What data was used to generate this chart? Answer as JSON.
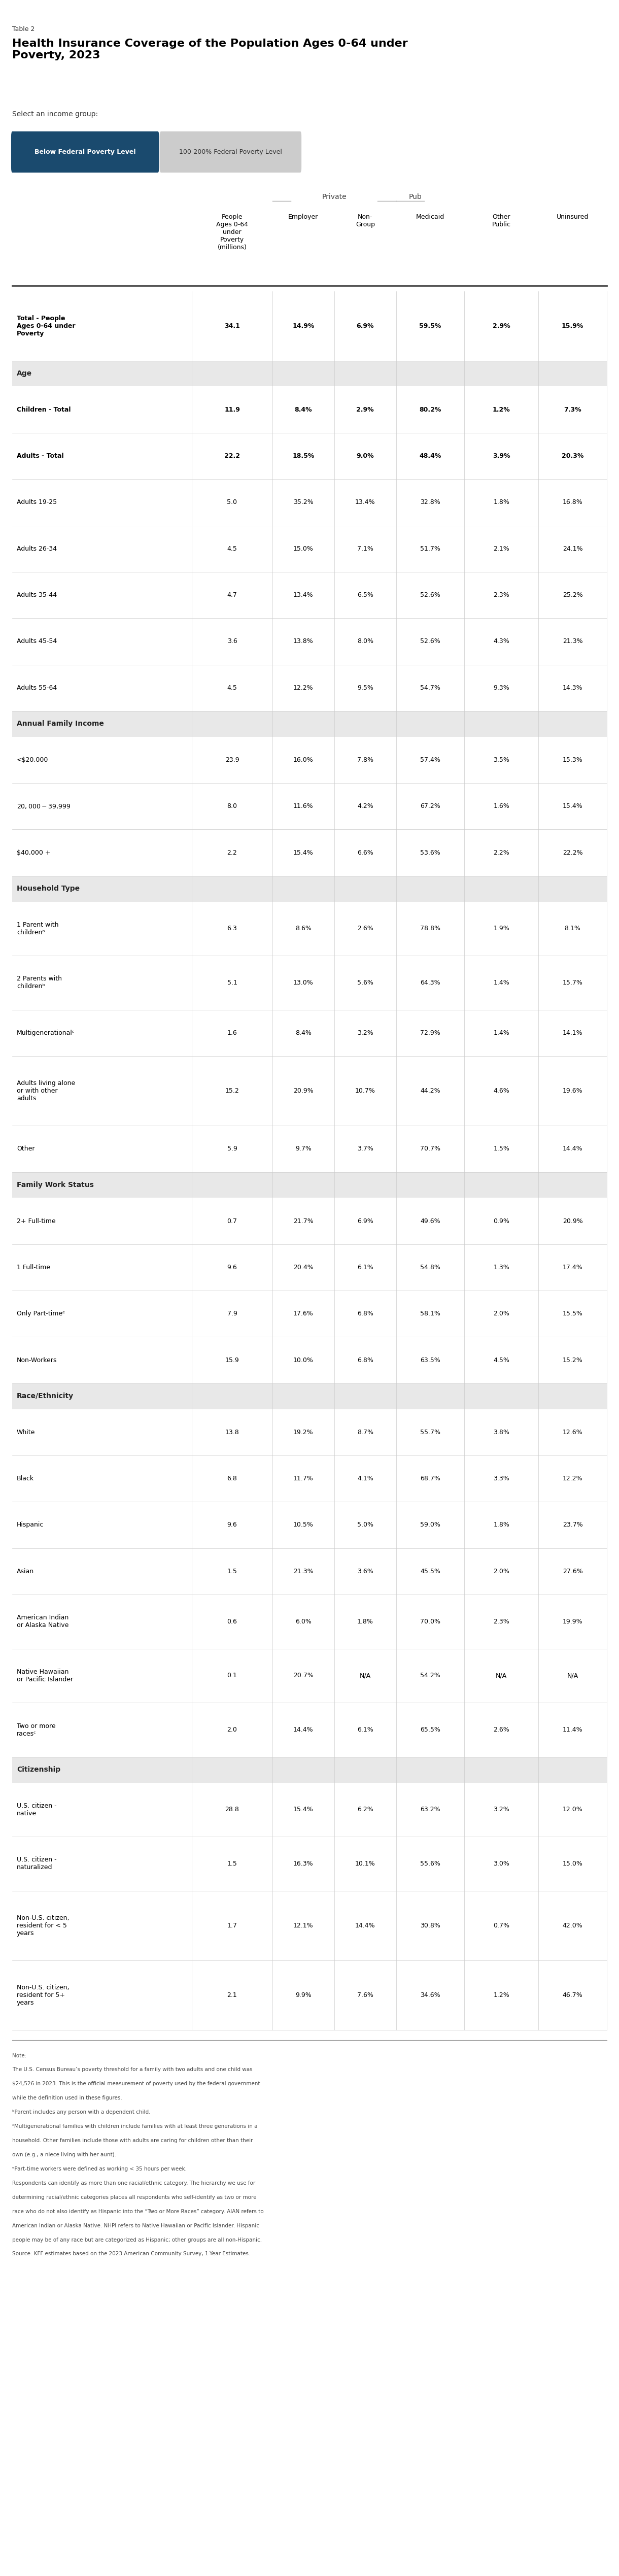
{
  "table_number": "Table 2",
  "title": "Health Insurance Coverage of the Population Ages 0-64 under\nPoverty, 2023",
  "income_buttons": [
    "Below Federal Poverty Level",
    "100-200% Federal Poverty Level"
  ],
  "active_button": 0,
  "section_header": "Select an income group:",
  "col_group_private": "Private",
  "col_group_public": "Pub",
  "rows": [
    {
      "label": "Total - People\nAges 0-64 under\nPoverty",
      "is_section": false,
      "bold": true,
      "values": [
        "34.1",
        "14.9%",
        "6.9%",
        "59.5%",
        "2.9%",
        "15.9%"
      ]
    },
    {
      "label": "Age",
      "is_section": true,
      "bold": true,
      "values": []
    },
    {
      "label": "Children - Total",
      "is_section": false,
      "bold": true,
      "values": [
        "11.9",
        "8.4%",
        "2.9%",
        "80.2%",
        "1.2%",
        "7.3%"
      ]
    },
    {
      "label": "Adults - Total",
      "is_section": false,
      "bold": true,
      "values": [
        "22.2",
        "18.5%",
        "9.0%",
        "48.4%",
        "3.9%",
        "20.3%"
      ]
    },
    {
      "label": "Adults 19-25",
      "is_section": false,
      "bold": false,
      "values": [
        "5.0",
        "35.2%",
        "13.4%",
        "32.8%",
        "1.8%",
        "16.8%"
      ]
    },
    {
      "label": "Adults 26-34",
      "is_section": false,
      "bold": false,
      "values": [
        "4.5",
        "15.0%",
        "7.1%",
        "51.7%",
        "2.1%",
        "24.1%"
      ]
    },
    {
      "label": "Adults 35-44",
      "is_section": false,
      "bold": false,
      "values": [
        "4.7",
        "13.4%",
        "6.5%",
        "52.6%",
        "2.3%",
        "25.2%"
      ]
    },
    {
      "label": "Adults 45-54",
      "is_section": false,
      "bold": false,
      "values": [
        "3.6",
        "13.8%",
        "8.0%",
        "52.6%",
        "4.3%",
        "21.3%"
      ]
    },
    {
      "label": "Adults 55-64",
      "is_section": false,
      "bold": false,
      "values": [
        "4.5",
        "12.2%",
        "9.5%",
        "54.7%",
        "9.3%",
        "14.3%"
      ]
    },
    {
      "label": "Annual Family Income",
      "is_section": true,
      "bold": true,
      "values": []
    },
    {
      "label": "<$20,000",
      "is_section": false,
      "bold": false,
      "values": [
        "23.9",
        "16.0%",
        "7.8%",
        "57.4%",
        "3.5%",
        "15.3%"
      ]
    },
    {
      "label": "$20,000 - $39,999",
      "is_section": false,
      "bold": false,
      "values": [
        "8.0",
        "11.6%",
        "4.2%",
        "67.2%",
        "1.6%",
        "15.4%"
      ]
    },
    {
      "label": "$40,000 +",
      "is_section": false,
      "bold": false,
      "values": [
        "2.2",
        "15.4%",
        "6.6%",
        "53.6%",
        "2.2%",
        "22.2%"
      ]
    },
    {
      "label": "Household Type",
      "is_section": true,
      "bold": true,
      "values": []
    },
    {
      "label": "1 Parent with\nchildrenᵇ",
      "is_section": false,
      "bold": false,
      "values": [
        "6.3",
        "8.6%",
        "2.6%",
        "78.8%",
        "1.9%",
        "8.1%"
      ]
    },
    {
      "label": "2 Parents with\nchildrenᵇ",
      "is_section": false,
      "bold": false,
      "values": [
        "5.1",
        "13.0%",
        "5.6%",
        "64.3%",
        "1.4%",
        "15.7%"
      ]
    },
    {
      "label": "Multigenerationalᶜ",
      "is_section": false,
      "bold": false,
      "values": [
        "1.6",
        "8.4%",
        "3.2%",
        "72.9%",
        "1.4%",
        "14.1%"
      ]
    },
    {
      "label": "Adults living alone\nor with other\nadults",
      "is_section": false,
      "bold": false,
      "values": [
        "15.2",
        "20.9%",
        "10.7%",
        "44.2%",
        "4.6%",
        "19.6%"
      ]
    },
    {
      "label": "Other",
      "is_section": false,
      "bold": false,
      "values": [
        "5.9",
        "9.7%",
        "3.7%",
        "70.7%",
        "1.5%",
        "14.4%"
      ]
    },
    {
      "label": "Family Work Status",
      "is_section": true,
      "bold": true,
      "values": []
    },
    {
      "label": "2+ Full-time",
      "is_section": false,
      "bold": false,
      "values": [
        "0.7",
        "21.7%",
        "6.9%",
        "49.6%",
        "0.9%",
        "20.9%"
      ]
    },
    {
      "label": "1 Full-time",
      "is_section": false,
      "bold": false,
      "values": [
        "9.6",
        "20.4%",
        "6.1%",
        "54.8%",
        "1.3%",
        "17.4%"
      ]
    },
    {
      "label": "Only Part-timeᵉ",
      "is_section": false,
      "bold": false,
      "values": [
        "7.9",
        "17.6%",
        "6.8%",
        "58.1%",
        "2.0%",
        "15.5%"
      ]
    },
    {
      "label": "Non-Workers",
      "is_section": false,
      "bold": false,
      "values": [
        "15.9",
        "10.0%",
        "6.8%",
        "63.5%",
        "4.5%",
        "15.2%"
      ]
    },
    {
      "label": "Race/Ethnicity",
      "is_section": true,
      "bold": true,
      "values": []
    },
    {
      "label": "White",
      "is_section": false,
      "bold": false,
      "values": [
        "13.8",
        "19.2%",
        "8.7%",
        "55.7%",
        "3.8%",
        "12.6%"
      ]
    },
    {
      "label": "Black",
      "is_section": false,
      "bold": false,
      "values": [
        "6.8",
        "11.7%",
        "4.1%",
        "68.7%",
        "3.3%",
        "12.2%"
      ]
    },
    {
      "label": "Hispanic",
      "is_section": false,
      "bold": false,
      "values": [
        "9.6",
        "10.5%",
        "5.0%",
        "59.0%",
        "1.8%",
        "23.7%"
      ]
    },
    {
      "label": "Asian",
      "is_section": false,
      "bold": false,
      "values": [
        "1.5",
        "21.3%",
        "3.6%",
        "45.5%",
        "2.0%",
        "27.6%"
      ]
    },
    {
      "label": "American Indian\nor Alaska Native",
      "is_section": false,
      "bold": false,
      "values": [
        "0.6",
        "6.0%",
        "1.8%",
        "70.0%",
        "2.3%",
        "19.9%"
      ]
    },
    {
      "label": "Native Hawaiian\nor Pacific Islander",
      "is_section": false,
      "bold": false,
      "values": [
        "0.1",
        "20.7%",
        "N/A",
        "54.2%",
        "N/A",
        "N/A"
      ]
    },
    {
      "label": "Two or more\nracesᶜ",
      "is_section": false,
      "bold": false,
      "values": [
        "2.0",
        "14.4%",
        "6.1%",
        "65.5%",
        "2.6%",
        "11.4%"
      ]
    },
    {
      "label": "Citizenship",
      "is_section": true,
      "bold": true,
      "values": []
    },
    {
      "label": "U.S. citizen -\nnative",
      "is_section": false,
      "bold": false,
      "values": [
        "28.8",
        "15.4%",
        "6.2%",
        "63.2%",
        "3.2%",
        "12.0%"
      ]
    },
    {
      "label": "U.S. citizen -\nnaturalized",
      "is_section": false,
      "bold": false,
      "values": [
        "1.5",
        "16.3%",
        "10.1%",
        "55.6%",
        "3.0%",
        "15.0%"
      ]
    },
    {
      "label": "Non-U.S. citizen,\nresident for < 5\nyears",
      "is_section": false,
      "bold": false,
      "values": [
        "1.7",
        "12.1%",
        "14.4%",
        "30.8%",
        "0.7%",
        "42.0%"
      ]
    },
    {
      "label": "Non-U.S. citizen,\nresident for 5+\nyears",
      "is_section": false,
      "bold": false,
      "values": [
        "2.1",
        "9.9%",
        "7.6%",
        "34.6%",
        "1.2%",
        "46.7%"
      ]
    }
  ],
  "notes": [
    "Note:",
    "The U.S. Census Bureau’s poverty threshold for a family with two adults and one child was",
    "$24,526 in 2023. This is the official measurement of poverty used by the federal government",
    "while the definition used in these figures.",
    "ᵇParent includes any person with a dependent child.",
    "ᶜMultigenerational families with children include families with at least three generations in a",
    "household. Other families include those with adults are caring for children other than their",
    "own (e.g., a niece living with her aunt).",
    "ᵉPart-time workers were defined as working < 35 hours per week.",
    "Respondents can identify as more than one racial/ethnic category. The hierarchy we use for",
    "determining racial/ethnic categories places all respondents who self-identify as two or more",
    "race who do not also identify as Hispanic into the “Two or More Races” category. AIAN refers to",
    "American Indian or Alaska Native. NHPI refers to Native Hawaiian or Pacific Islander. Hispanic",
    "people may be of any race but are categorized as Hispanic; other groups are all non-Hispanic.",
    "Source: KFF estimates based on the 2023 American Community Survey, 1-Year Estimates."
  ],
  "bg_color_section": "#e8e8e8",
  "button_active_color": "#1a4a6e",
  "button_inactive_color": "#cccccc",
  "col_divider_color": "#cccccc",
  "header_line_color": "#444444"
}
